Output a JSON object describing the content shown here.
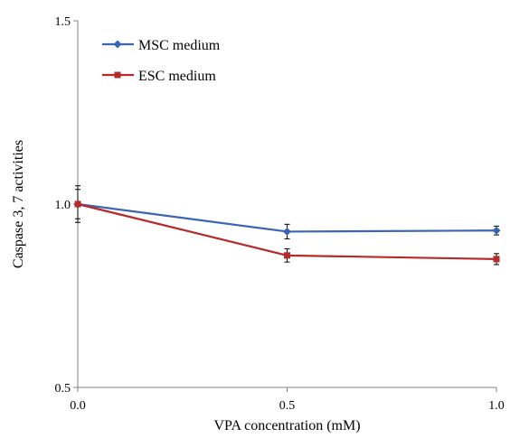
{
  "chart_data": {
    "type": "line",
    "title": "",
    "xlabel": "VPA concentration (mM)",
    "ylabel": "Caspase 3, 7 activities",
    "x": [
      0.0,
      0.5,
      1.0
    ],
    "xticks": [
      "0.0",
      "0.5",
      "1.0"
    ],
    "xlim": [
      0.0,
      1.0
    ],
    "ylim": [
      0.5,
      1.5
    ],
    "yticks": [
      "0.5",
      "1.0",
      "1.5"
    ],
    "grid": false,
    "legend_position": "top-left",
    "series": [
      {
        "name": "MSC medium",
        "color": "#3a64b4",
        "marker": "diamond",
        "values": [
          1.0,
          0.925,
          0.928
        ],
        "errors": [
          0.05,
          0.02,
          0.012
        ]
      },
      {
        "name": "ESC medium",
        "color": "#b62a2a",
        "marker": "square",
        "values": [
          1.0,
          0.86,
          0.85
        ],
        "errors": [
          0.04,
          0.018,
          0.015
        ]
      }
    ]
  }
}
